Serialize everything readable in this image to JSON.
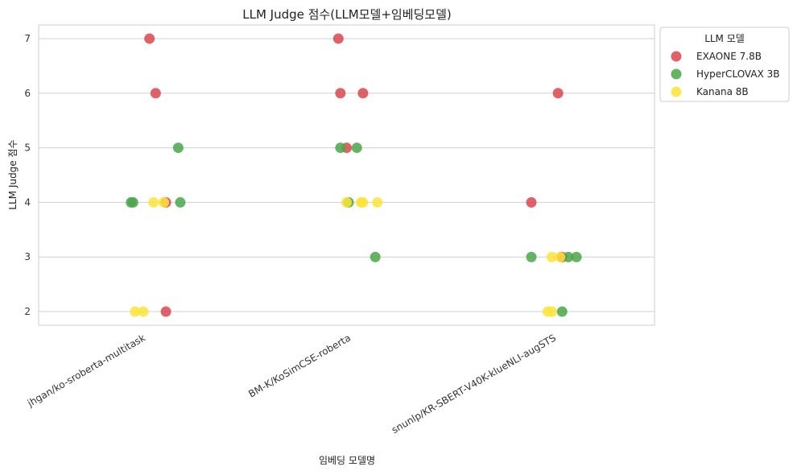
{
  "chart_data": {
    "type": "scatter",
    "subtype": "strip",
    "title": "LLM Judge 점수(LLM모델+임베딩모델)",
    "xlabel": "임베딩 모델명",
    "ylabel": "LLM Judge 점수",
    "categories": [
      "jhgan/ko-sroberta-multitask",
      "BM-K/KoSimCSE-roberta",
      "snunlp/KR-SBERT-V40K-klueNLI-augSTS"
    ],
    "ylim": [
      1.75,
      7.25
    ],
    "yticks": [
      2,
      3,
      4,
      5,
      6,
      7
    ],
    "grid": true,
    "legend": {
      "title": "LLM 모델",
      "position": "outside-right-top",
      "entries": [
        {
          "name": "EXAONE 7.8B",
          "color": "#d9474f"
        },
        {
          "name": "HyperCLOVAX 3B",
          "color": "#4aa64a"
        },
        {
          "name": "Kanana 8B",
          "color": "#fce33a"
        }
      ]
    },
    "series": [
      {
        "name": "EXAONE 7.8B",
        "color": "#d9474f",
        "points": [
          {
            "category": 0,
            "jitter": 0.04,
            "y": 7
          },
          {
            "category": 0,
            "jitter": 0.07,
            "y": 6
          },
          {
            "category": 0,
            "jitter": 0.12,
            "y": 2
          },
          {
            "category": 0,
            "jitter": 0.12,
            "y": 4
          },
          {
            "category": 1,
            "jitter": -0.04,
            "y": 7
          },
          {
            "category": 1,
            "jitter": -0.03,
            "y": 6
          },
          {
            "category": 1,
            "jitter": 0.08,
            "y": 6
          },
          {
            "category": 1,
            "jitter": 0.0,
            "y": 5
          },
          {
            "category": 2,
            "jitter": -0.1,
            "y": 4
          },
          {
            "category": 2,
            "jitter": 0.03,
            "y": 6
          },
          {
            "category": 2,
            "jitter": 0.05,
            "y": 3
          }
        ]
      },
      {
        "name": "HyperCLOVAX 3B",
        "color": "#4aa64a",
        "points": [
          {
            "category": 0,
            "jitter": -0.05,
            "y": 4
          },
          {
            "category": 0,
            "jitter": -0.04,
            "y": 4
          },
          {
            "category": 0,
            "jitter": 0.18,
            "y": 5
          },
          {
            "category": 0,
            "jitter": 0.19,
            "y": 4
          },
          {
            "category": 1,
            "jitter": -0.03,
            "y": 5
          },
          {
            "category": 1,
            "jitter": 0.05,
            "y": 5
          },
          {
            "category": 1,
            "jitter": 0.01,
            "y": 4
          },
          {
            "category": 1,
            "jitter": 0.14,
            "y": 3
          },
          {
            "category": 2,
            "jitter": -0.1,
            "y": 3
          },
          {
            "category": 2,
            "jitter": 0.05,
            "y": 2
          },
          {
            "category": 2,
            "jitter": 0.08,
            "y": 3
          },
          {
            "category": 2,
            "jitter": 0.12,
            "y": 3
          }
        ]
      },
      {
        "name": "Kanana 8B",
        "color": "#fce33a",
        "points": [
          {
            "category": 0,
            "jitter": -0.03,
            "y": 2
          },
          {
            "category": 0,
            "jitter": 0.01,
            "y": 2
          },
          {
            "category": 0,
            "jitter": 0.06,
            "y": 4
          },
          {
            "category": 0,
            "jitter": 0.11,
            "y": 4
          },
          {
            "category": 1,
            "jitter": 0.0,
            "y": 4
          },
          {
            "category": 1,
            "jitter": 0.07,
            "y": 4
          },
          {
            "category": 1,
            "jitter": 0.08,
            "y": 4
          },
          {
            "category": 1,
            "jitter": 0.15,
            "y": 4
          },
          {
            "category": 2,
            "jitter": -0.02,
            "y": 2
          },
          {
            "category": 2,
            "jitter": 0.0,
            "y": 3
          },
          {
            "category": 2,
            "jitter": 0.0,
            "y": 2
          },
          {
            "category": 2,
            "jitter": 0.04,
            "y": 3
          }
        ]
      }
    ]
  }
}
